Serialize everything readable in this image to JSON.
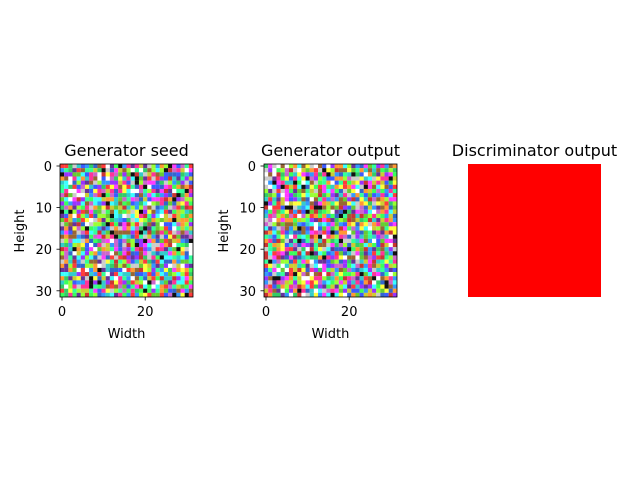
{
  "chart_data": [
    {
      "type": "heatmap",
      "title": "Generator seed",
      "xlabel": "Width",
      "ylabel": "Height",
      "image_size": [
        32,
        32
      ],
      "content": "random colored noise",
      "xticks": [
        "0",
        "20"
      ],
      "yticks": [
        "0",
        "10",
        "20",
        "30"
      ]
    },
    {
      "type": "heatmap",
      "title": "Generator output",
      "xlabel": "Width",
      "ylabel": "Height",
      "image_size": [
        32,
        32
      ],
      "content": "random colored noise",
      "xticks": [
        "0",
        "20"
      ],
      "yticks": [
        "0",
        "10",
        "20",
        "30"
      ]
    },
    {
      "type": "heatmap",
      "title": "Discriminator output",
      "axes_visible": false,
      "fill_color": "#ff0000"
    }
  ]
}
